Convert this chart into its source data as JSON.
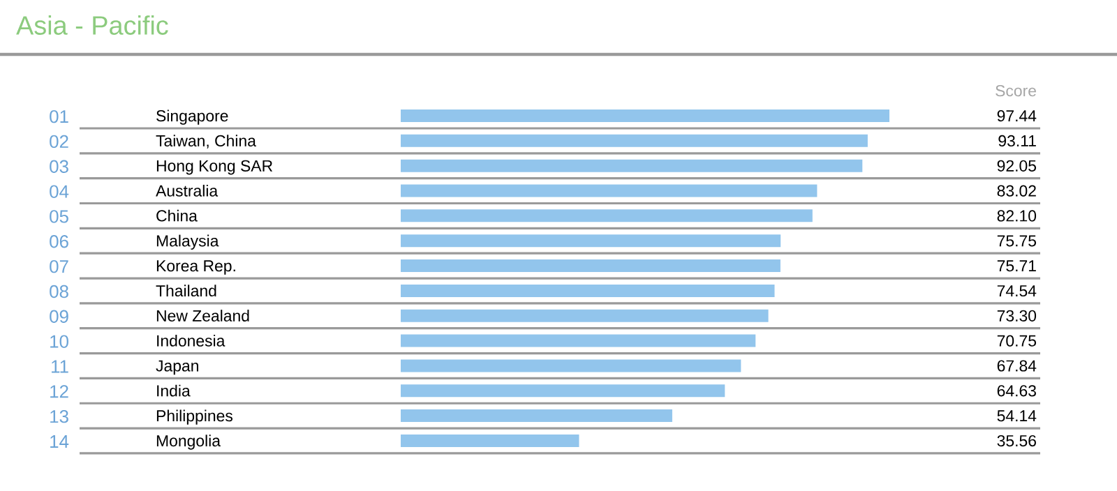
{
  "chart_data": {
    "type": "bar",
    "orientation": "horizontal",
    "title": "Asia - Pacific",
    "categories": [
      "Singapore",
      "Taiwan, China",
      "Hong Kong SAR",
      "Australia",
      "China",
      "Malaysia",
      "Korea Rep.",
      "Thailand",
      "New Zealand",
      "Indonesia",
      "Japan",
      "India",
      "Philippines",
      "Mongolia"
    ],
    "values": [
      97.44,
      93.11,
      92.05,
      83.02,
      82.1,
      75.75,
      75.71,
      74.54,
      73.3,
      70.75,
      67.84,
      64.63,
      54.14,
      35.56
    ],
    "value_labels": [
      "97.44",
      "93.11",
      "92.05",
      "83.02",
      "82.10",
      "75.75",
      "75.71",
      "74.54",
      "73.30",
      "70.75",
      "67.84",
      "64.63",
      "54.14",
      "35.56"
    ],
    "color": "#92c5ec",
    "annotations": [
      "01",
      "02",
      "03",
      "04",
      "05",
      "06",
      "07",
      "08",
      "09",
      "10",
      "11",
      "12",
      "13",
      "14",
      "Score"
    ]
  }
}
